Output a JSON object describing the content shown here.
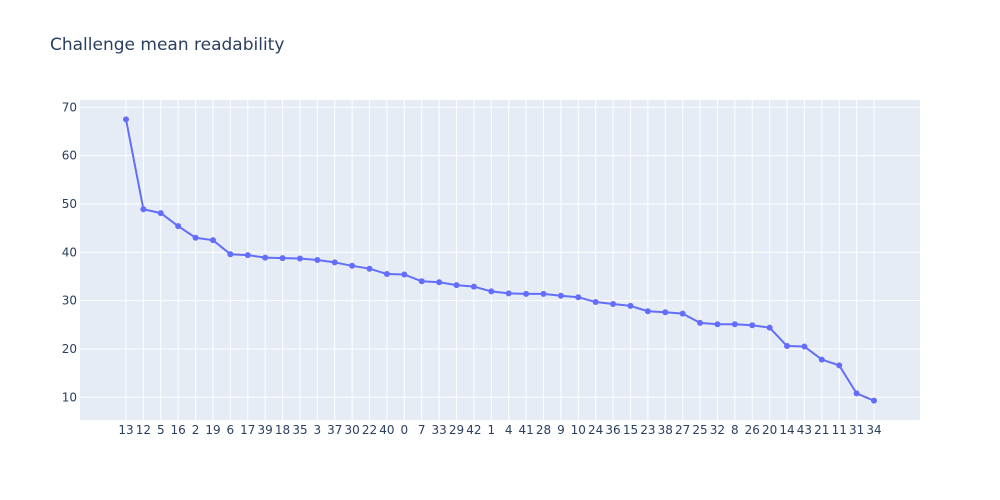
{
  "chart_data": {
    "type": "line",
    "title": "Challenge mean readability",
    "xlabel": "",
    "ylabel": "",
    "ylim": [
      5.3,
      71.5
    ],
    "yticks": [
      10,
      20,
      30,
      40,
      50,
      60,
      70
    ],
    "grid": true,
    "categories": [
      "13",
      "12",
      "5",
      "16",
      "2",
      "19",
      "6",
      "17",
      "39",
      "18",
      "35",
      "3",
      "37",
      "30",
      "22",
      "40",
      "0",
      "7",
      "33",
      "29",
      "42",
      "1",
      "4",
      "41",
      "28",
      "9",
      "10",
      "24",
      "36",
      "15",
      "23",
      "38",
      "27",
      "25",
      "32",
      "8",
      "26",
      "20",
      "14",
      "43",
      "21",
      "11",
      "31",
      "34"
    ],
    "values": [
      67.5,
      48.9,
      48.1,
      45.4,
      43.0,
      42.5,
      39.6,
      39.4,
      38.9,
      38.8,
      38.7,
      38.4,
      37.9,
      37.2,
      36.6,
      35.5,
      35.4,
      34.0,
      33.8,
      33.2,
      32.9,
      31.9,
      31.5,
      31.4,
      31.4,
      31.0,
      30.7,
      29.7,
      29.3,
      28.9,
      27.8,
      27.6,
      27.3,
      25.4,
      25.1,
      25.1,
      24.9,
      24.4,
      20.6,
      20.5,
      17.8,
      16.6,
      10.8,
      9.3
    ],
    "colors": {
      "line": "#636efa",
      "plot_bg": "#e5ecf6",
      "grid": "#ffffff",
      "text": "#2a3f5f"
    }
  }
}
